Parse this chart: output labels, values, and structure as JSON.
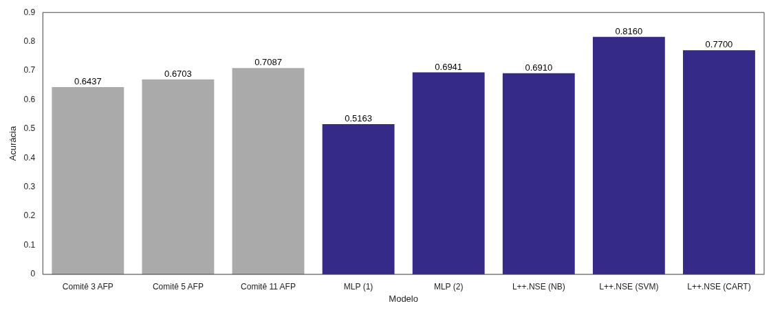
{
  "chart_data": {
    "type": "bar",
    "xlabel": "Modelo",
    "ylabel": "Acurácia",
    "categories": [
      "Comitê 3 AFP",
      "Comitê 5 AFP",
      "Comitê 11 AFP",
      "MLP (1)",
      "MLP (2)",
      "L++.NSE (NB)",
      "L++.NSE (SVM)",
      "L++.NSE (CART)"
    ],
    "values": [
      0.6437,
      0.6703,
      0.7087,
      0.5163,
      0.6941,
      0.691,
      0.816,
      0.77
    ],
    "value_labels": [
      "0.6437",
      "0.6703",
      "0.7087",
      "0.5163",
      "0.6941",
      "0.6910",
      "0.8160",
      "0.7700"
    ],
    "colors": [
      "#aaaaaa",
      "#aaaaaa",
      "#aaaaaa",
      "#352a87",
      "#352a87",
      "#352a87",
      "#352a87",
      "#352a87"
    ],
    "ylim": [
      0,
      0.9
    ],
    "yticks": [
      0,
      0.1,
      0.2,
      0.3,
      0.4,
      0.5,
      0.6,
      0.7,
      0.8,
      0.9
    ],
    "grid": false,
    "legend": false
  }
}
